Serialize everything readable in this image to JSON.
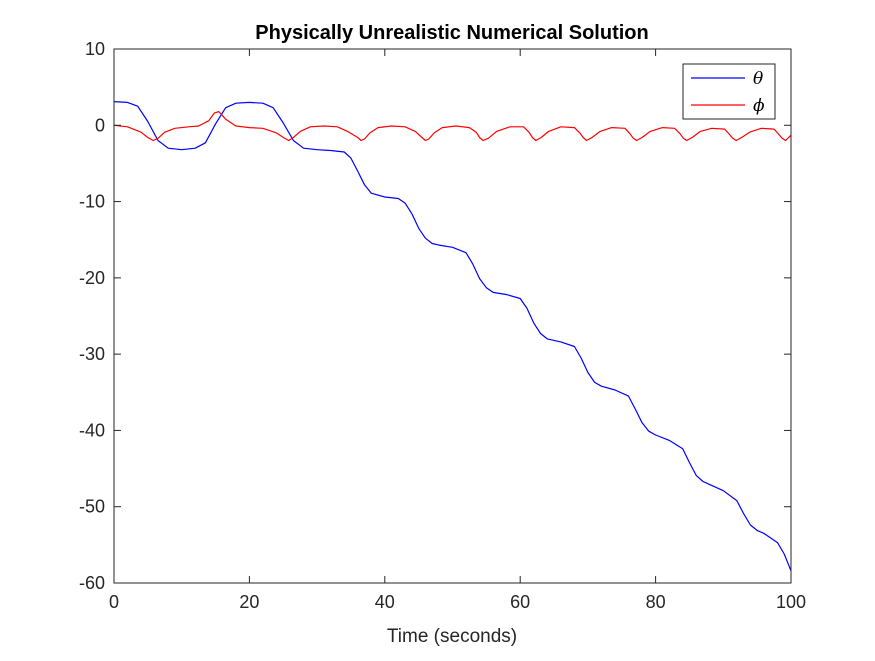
{
  "chart_data": {
    "type": "line",
    "title": "Physically Unrealistic Numerical Solution",
    "xlabel": "Time (seconds)",
    "ylabel": "",
    "xlim": [
      0,
      100
    ],
    "ylim": [
      -60,
      10
    ],
    "xticks": [
      "0",
      "20",
      "40",
      "60",
      "80",
      "100"
    ],
    "yticks": [
      "10",
      "0",
      "-10",
      "-20",
      "-30",
      "-40",
      "-50",
      "-60"
    ],
    "grid": false,
    "legend_position": "top-right",
    "series": [
      {
        "name": "θ",
        "color": "#0000ff",
        "x": [
          0,
          2,
          3.5,
          5,
          6.5,
          8,
          10,
          12,
          13.5,
          15,
          16.5,
          18,
          20,
          22,
          23.5,
          25,
          26.5,
          28,
          30,
          32,
          34,
          35,
          36,
          37,
          38,
          40,
          42,
          43,
          44,
          45,
          46,
          47,
          48,
          50,
          52,
          53,
          54,
          55,
          56,
          58,
          60,
          61,
          62,
          63,
          64,
          66,
          68,
          69,
          70,
          71,
          72,
          74,
          76,
          77,
          78,
          79,
          80,
          82,
          84,
          85,
          86,
          87,
          88,
          90,
          92,
          93,
          94,
          95,
          96,
          98,
          99,
          100
        ],
        "y": [
          3.1,
          3.0,
          2.5,
          0.5,
          -2.0,
          -3.0,
          -3.2,
          -3.0,
          -2.3,
          0.2,
          2.3,
          2.9,
          3.0,
          2.9,
          2.3,
          0.3,
          -2.0,
          -3.0,
          -3.2,
          -3.3,
          -3.5,
          -4.3,
          -6.0,
          -7.8,
          -8.9,
          -9.4,
          -9.6,
          -10.2,
          -11.6,
          -13.5,
          -14.8,
          -15.5,
          -15.7,
          -16.0,
          -16.7,
          -18.2,
          -20.1,
          -21.3,
          -21.9,
          -22.2,
          -22.7,
          -24.0,
          -25.9,
          -27.3,
          -28.0,
          -28.4,
          -29.0,
          -30.5,
          -32.4,
          -33.7,
          -34.2,
          -34.7,
          -35.5,
          -37.2,
          -39.0,
          -40.1,
          -40.6,
          -41.3,
          -42.4,
          -44.2,
          -45.9,
          -46.7,
          -47.1,
          -47.9,
          -49.2,
          -50.9,
          -52.4,
          -53.1,
          -53.5,
          -54.7,
          -56.2,
          -58.4
        ]
      },
      {
        "name": "ϕ",
        "color": "#ff0000",
        "x": [
          0,
          2,
          4,
          5,
          5.8,
          6.5,
          7.5,
          9,
          11,
          12.5,
          14,
          14.8,
          15.5,
          16.5,
          18,
          20,
          22,
          24,
          25,
          25.8,
          26.5,
          27.5,
          29,
          31,
          33,
          34.5,
          36,
          36.5,
          37,
          37.8,
          39,
          41,
          43,
          44.5,
          45.5,
          46,
          46.5,
          47.3,
          48.5,
          50.5,
          52.5,
          53.5,
          54,
          54.5,
          55.3,
          56.5,
          58.5,
          60.5,
          61.3,
          61.8,
          62.3,
          63.1,
          64.2,
          66,
          68,
          68.8,
          69.3,
          69.8,
          70.6,
          71.8,
          73.5,
          75.5,
          76.2,
          76.7,
          77.2,
          78,
          79.2,
          81,
          82.8,
          83.6,
          84.1,
          84.6,
          85.4,
          86.6,
          88.3,
          90.2,
          90.9,
          91.4,
          91.9,
          92.7,
          93.9,
          95.6,
          97.5,
          98.2,
          98.7,
          99.2,
          100
        ],
        "y": [
          0.0,
          -0.2,
          -0.9,
          -1.6,
          -2.0,
          -1.7,
          -0.9,
          -0.4,
          -0.2,
          -0.1,
          0.6,
          1.6,
          1.8,
          0.8,
          -0.1,
          -0.3,
          -0.4,
          -1.0,
          -1.6,
          -2.0,
          -1.6,
          -0.8,
          -0.2,
          -0.1,
          -0.2,
          -0.8,
          -1.6,
          -2.0,
          -1.8,
          -1.0,
          -0.3,
          -0.1,
          -0.2,
          -0.8,
          -1.6,
          -2.0,
          -1.8,
          -1.0,
          -0.3,
          -0.1,
          -0.3,
          -0.9,
          -1.6,
          -2.0,
          -1.7,
          -0.8,
          -0.2,
          -0.2,
          -0.9,
          -1.6,
          -2.0,
          -1.6,
          -0.8,
          -0.2,
          -0.3,
          -1.0,
          -1.6,
          -2.0,
          -1.6,
          -0.8,
          -0.3,
          -0.4,
          -1.1,
          -1.7,
          -2.0,
          -1.6,
          -0.8,
          -0.3,
          -0.4,
          -1.1,
          -1.7,
          -2.0,
          -1.6,
          -0.8,
          -0.4,
          -0.5,
          -1.2,
          -1.7,
          -2.0,
          -1.6,
          -0.9,
          -0.4,
          -0.5,
          -1.2,
          -1.7,
          -2.0,
          -1.3
        ]
      }
    ]
  }
}
